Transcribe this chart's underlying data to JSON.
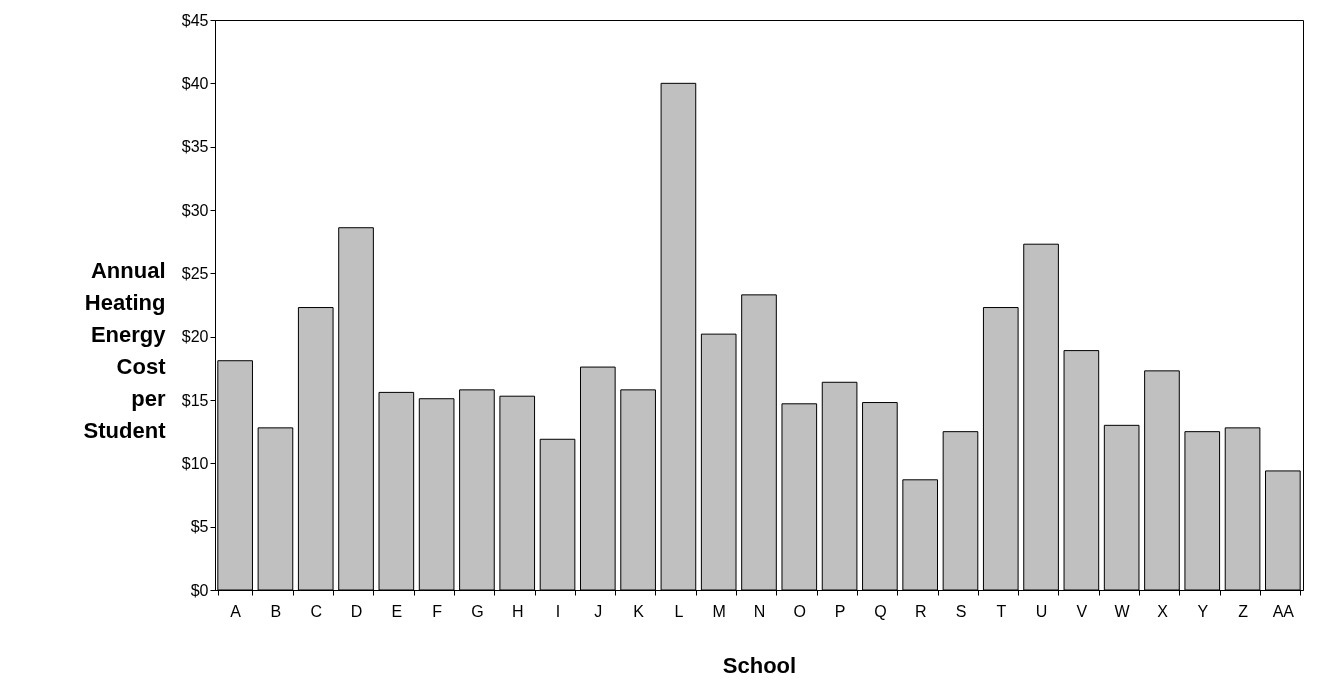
{
  "chart_data": {
    "type": "bar",
    "xlabel": "School",
    "ylabel": "Annual Heating Energy Cost per Student",
    "categories": [
      "A",
      "B",
      "C",
      "D",
      "E",
      "F",
      "G",
      "H",
      "I",
      "J",
      "K",
      "L",
      "M",
      "N",
      "O",
      "P",
      "Q",
      "R",
      "S",
      "T",
      "U",
      "V",
      "W",
      "X",
      "Y",
      "Z",
      "AA"
    ],
    "values": [
      18.1,
      12.8,
      22.3,
      28.6,
      15.6,
      15.1,
      15.8,
      15.3,
      11.9,
      17.6,
      15.8,
      40.0,
      20.2,
      23.3,
      14.7,
      16.4,
      14.8,
      8.7,
      12.5,
      22.3,
      27.3,
      18.9,
      13.0,
      17.3,
      12.5,
      12.8,
      9.4
    ],
    "color": "#c0c0c0",
    "ylim": [
      0,
      45
    ],
    "yticks": [
      {
        "value": 0,
        "label": "$0"
      },
      {
        "value": 5,
        "label": "$5"
      },
      {
        "value": 10,
        "label": "$10"
      },
      {
        "value": 15,
        "label": "$15"
      },
      {
        "value": 20,
        "label": "$20"
      },
      {
        "value": 25,
        "label": "$25"
      },
      {
        "value": 30,
        "label": "$30"
      },
      {
        "value": 35,
        "label": "$35"
      },
      {
        "value": 40,
        "label": "$40"
      },
      {
        "value": 45,
        "label": "$45"
      }
    ],
    "grid": false
  }
}
